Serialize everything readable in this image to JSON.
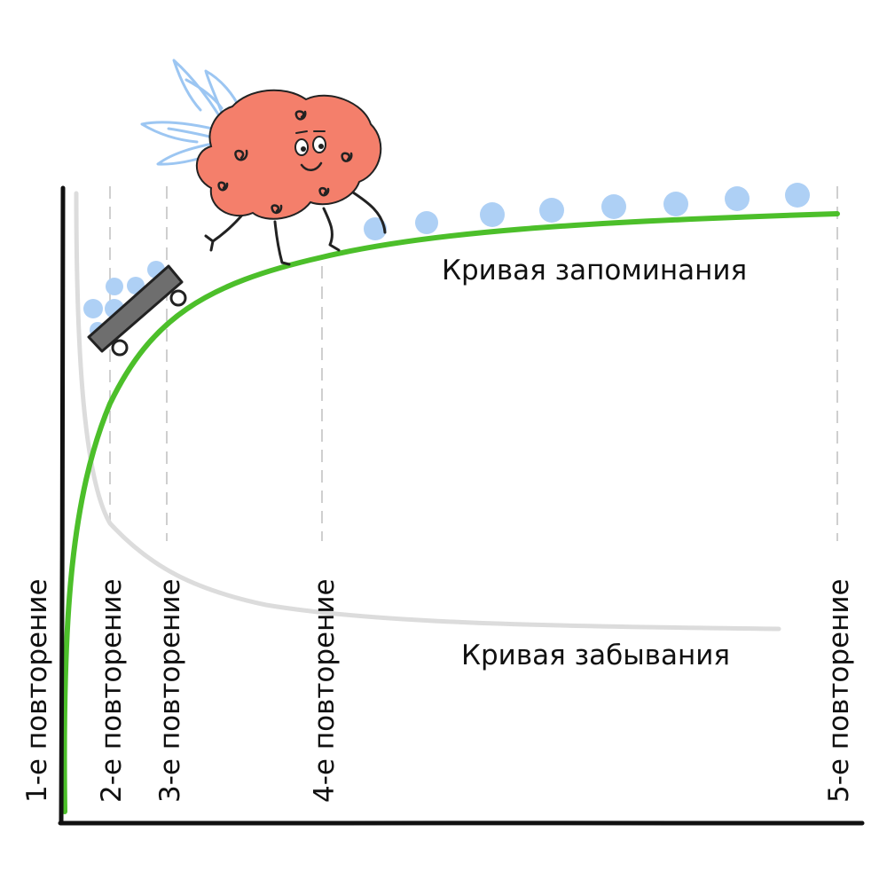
{
  "curves": {
    "memorization": {
      "label": "Кривая запоминания",
      "color": "#4cbf2a"
    },
    "forgetting": {
      "label": "Кривая забывания",
      "color": "#dcdcdc"
    }
  },
  "repetitions": [
    {
      "label": "1-е повторение"
    },
    {
      "label": "2-е повторение"
    },
    {
      "label": "3-е повторение"
    },
    {
      "label": "4-е повторение"
    },
    {
      "label": "5-е повторение"
    }
  ],
  "colors": {
    "axis": "#111111",
    "guide": "#cfcfcf",
    "dots": "#aed0f5",
    "brain": "#f47f6b",
    "wing": "#9cc6f2",
    "skateboard": "#6e6e6e"
  },
  "icons": {
    "mascot": "flying-brain-on-skateboard-icon"
  }
}
